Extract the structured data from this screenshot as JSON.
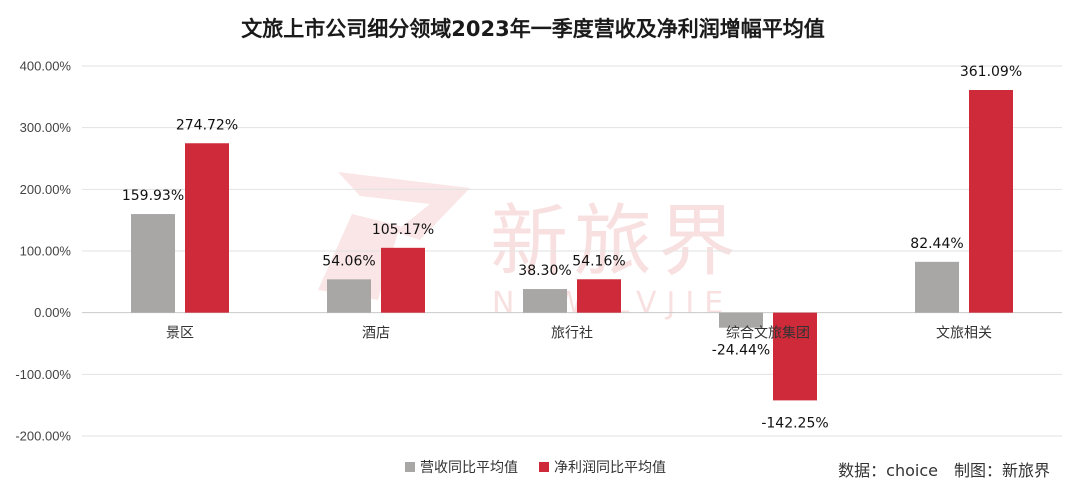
{
  "chart_data": {
    "type": "bar",
    "title": "文旅上市公司细分领域2023年一季度营收及净利润增幅平均值",
    "categories": [
      "景区",
      "酒店",
      "旅行社",
      "综合文旅集团",
      "文旅相关"
    ],
    "series": [
      {
        "name": "营收同比平均值",
        "color": "#a9a7a6",
        "values": [
          159.93,
          54.06,
          38.3,
          -24.44,
          82.44
        ],
        "labels": [
          "159.93%",
          "54.06%",
          "38.30%",
          "-24.44%",
          "82.44%"
        ]
      },
      {
        "name": "净利润同比平均值",
        "color": "#cf2a39",
        "values": [
          274.72,
          105.17,
          54.16,
          -142.25,
          361.09
        ],
        "labels": [
          "274.72%",
          "105.17%",
          "54.16%",
          "-142.25%",
          "361.09%"
        ]
      }
    ],
    "ylim": [
      -200,
      400
    ],
    "yticks": [
      400,
      300,
      200,
      100,
      0,
      -100,
      -200
    ],
    "ytick_labels": [
      "400.00%",
      "300.00%",
      "200.00%",
      "100.00%",
      "0.00%",
      "-100.00%",
      "-200.00%"
    ],
    "grid": true,
    "legend_position": "bottom-center",
    "xlabel": "",
    "ylabel": ""
  },
  "source_note": "数据：choice　制图：新旅界",
  "watermark": {
    "cn": "新旅界",
    "en": "NEW LVJIE"
  }
}
